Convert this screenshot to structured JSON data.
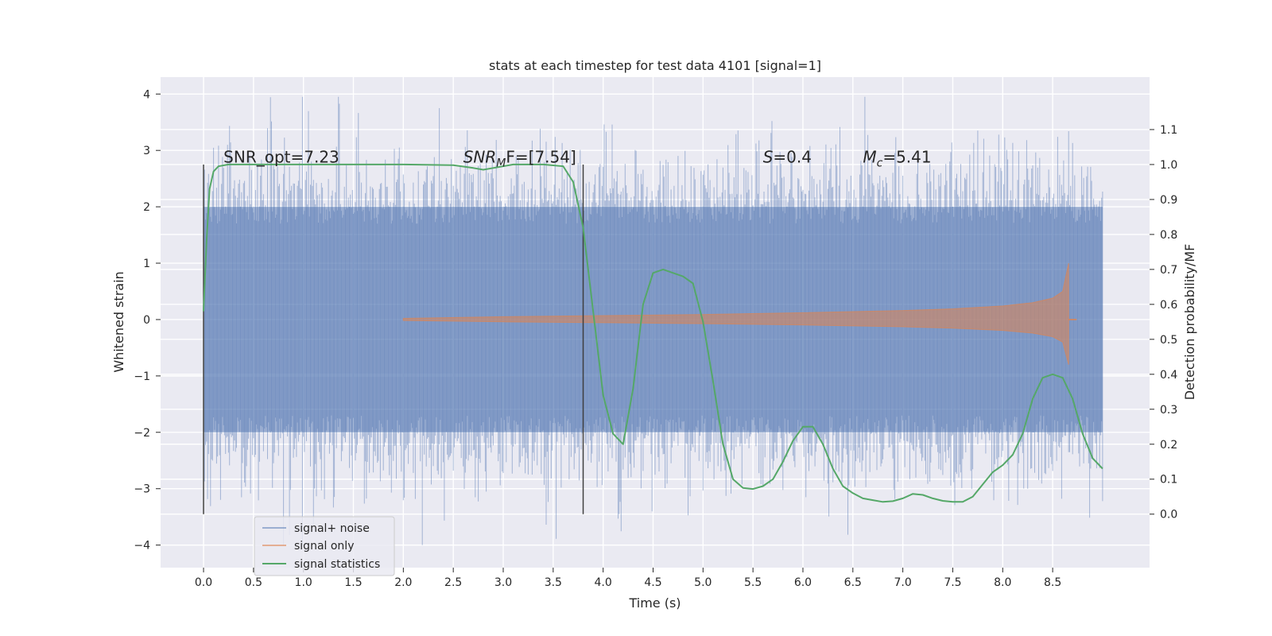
{
  "chart_data": {
    "type": "line",
    "title": "stats at each timestep for test data 4101 [signal=1]",
    "xlabel": "Time (s)",
    "ylabel": "Whitened strain",
    "y2label": "Detection probability/MF",
    "xlim": [
      -0.43,
      9.47
    ],
    "ylim": [
      -4.4,
      4.3
    ],
    "y2lim": [
      -0.153,
      1.25
    ],
    "x_ticks": [
      0.0,
      0.5,
      1.0,
      1.5,
      2.0,
      2.5,
      3.0,
      3.5,
      4.0,
      4.5,
      5.0,
      5.5,
      6.0,
      6.5,
      7.0,
      7.5,
      8.0,
      8.5
    ],
    "x_tick_labels": [
      "0.0",
      "0.5",
      "1.0",
      "1.5",
      "2.0",
      "2.5",
      "3.0",
      "3.5",
      "4.0",
      "4.5",
      "5.0",
      "5.5",
      "6.0",
      "6.5",
      "7.0",
      "7.5",
      "8.0",
      "8.5"
    ],
    "y_ticks": [
      -4,
      -3,
      -2,
      -1,
      0,
      1,
      2,
      3,
      4
    ],
    "y_tick_labels": [
      "−4",
      "−3",
      "−2",
      "−1",
      "0",
      "1",
      "2",
      "3",
      "4"
    ],
    "y2_ticks": [
      0.0,
      0.1,
      0.2,
      0.3,
      0.4,
      0.5,
      0.6,
      0.7,
      0.8,
      0.9,
      1.0,
      1.1
    ],
    "y2_tick_labels": [
      "0.0",
      "0.1",
      "0.2",
      "0.3",
      "0.4",
      "0.5",
      "0.6",
      "0.7",
      "0.8",
      "0.9",
      "1.0",
      "1.1"
    ],
    "grid": true,
    "legend_position": "lower-left",
    "series": [
      {
        "name": "signal+ noise",
        "color": "#4c72b0",
        "kind": "dense-noise",
        "x_range": [
          0.0,
          9.0
        ],
        "typical_envelope": [
          -2.0,
          2.0
        ],
        "extremes": [
          -4.0,
          3.95
        ]
      },
      {
        "name": "signal only",
        "color": "#dd8452",
        "kind": "chirp",
        "x_range": [
          2.0,
          8.66
        ],
        "envelope_x": [
          2.0,
          3.0,
          4.0,
          5.0,
          6.0,
          7.0,
          7.5,
          8.0,
          8.3,
          8.5,
          8.6,
          8.66
        ],
        "envelope_y": [
          0.02,
          0.05,
          0.07,
          0.09,
          0.12,
          0.16,
          0.19,
          0.24,
          0.3,
          0.38,
          0.5,
          1.0
        ]
      },
      {
        "name": "signal statistics",
        "color": "#55a868",
        "axis": "right",
        "x": [
          0.0,
          0.03,
          0.06,
          0.1,
          0.15,
          0.25,
          0.5,
          1.0,
          1.5,
          2.0,
          2.5,
          2.7,
          2.8,
          2.9,
          3.1,
          3.4,
          3.6,
          3.7,
          3.8,
          3.9,
          4.0,
          4.1,
          4.2,
          4.3,
          4.4,
          4.5,
          4.6,
          4.7,
          4.8,
          4.9,
          5.0,
          5.1,
          5.2,
          5.3,
          5.4,
          5.5,
          5.6,
          5.7,
          5.8,
          5.9,
          6.0,
          6.1,
          6.2,
          6.3,
          6.4,
          6.5,
          6.6,
          6.7,
          6.8,
          6.9,
          7.0,
          7.1,
          7.2,
          7.3,
          7.4,
          7.5,
          7.6,
          7.7,
          7.8,
          7.9,
          8.0,
          8.1,
          8.2,
          8.3,
          8.4,
          8.5,
          8.6,
          8.7,
          8.8,
          8.9,
          9.0
        ],
        "y": [
          0.58,
          0.78,
          0.93,
          0.98,
          0.995,
          1.0,
          1.0,
          1.0,
          1.0,
          1.0,
          0.998,
          0.99,
          0.985,
          0.99,
          1.0,
          1.0,
          0.995,
          0.95,
          0.82,
          0.58,
          0.34,
          0.23,
          0.2,
          0.36,
          0.6,
          0.69,
          0.7,
          0.69,
          0.68,
          0.66,
          0.55,
          0.38,
          0.2,
          0.1,
          0.075,
          0.072,
          0.08,
          0.1,
          0.15,
          0.21,
          0.25,
          0.25,
          0.2,
          0.13,
          0.08,
          0.06,
          0.045,
          0.04,
          0.035,
          0.037,
          0.045,
          0.058,
          0.055,
          0.045,
          0.038,
          0.035,
          0.035,
          0.05,
          0.085,
          0.12,
          0.14,
          0.17,
          0.23,
          0.33,
          0.39,
          0.4,
          0.39,
          0.33,
          0.23,
          0.16,
          0.13
        ]
      }
    ],
    "vertical_lines": [
      0.0,
      3.8
    ],
    "annotations": [
      {
        "x": 0.2,
        "y2": 1.005,
        "pre": "SNR_opt=7.23",
        "sub": "",
        "post": ""
      },
      {
        "x": 2.6,
        "y2": 1.005,
        "pre": "SNR",
        "sub": "M",
        "post": "F=[7.54]",
        "italic": true
      },
      {
        "x": 5.6,
        "y2": 1.005,
        "pre": "S",
        "sub": "",
        "post": "=0.4",
        "italic": true
      },
      {
        "x": 6.6,
        "y2": 1.005,
        "pre": "M",
        "sub": "c",
        "post": "=5.41",
        "italic": true
      }
    ]
  },
  "colors": {
    "plot_background": "#eaeaf2",
    "grid": "#ffffff",
    "noise": "#4c72b0",
    "signal": "#dd8452",
    "statistic": "#55a868",
    "marker_line": "#404040"
  }
}
